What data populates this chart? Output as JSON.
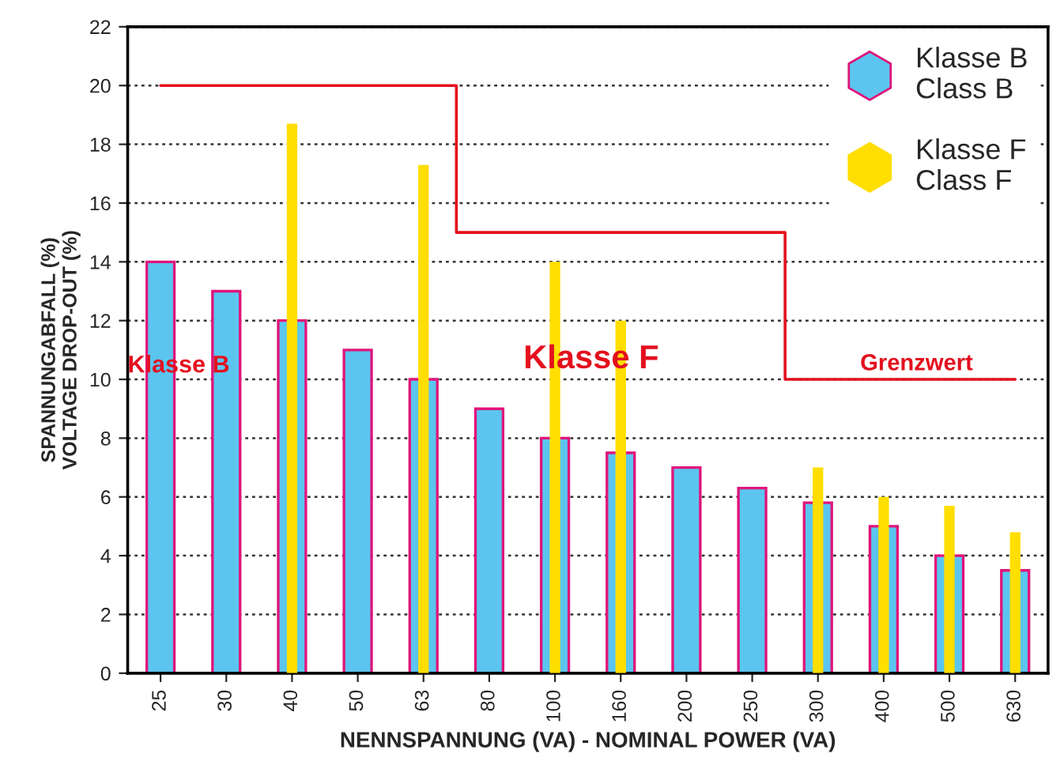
{
  "chart_data": {
    "type": "bar",
    "categories": [
      "25",
      "30",
      "40",
      "50",
      "63",
      "80",
      "100",
      "160",
      "200",
      "250",
      "300",
      "400",
      "500",
      "630"
    ],
    "xlabel": "NENNSPANNUNG (VA) - NOMINAL POWER (VA)",
    "ylabel": "SPANNUNGABFALL (%)\nVOLTAGE DROP-OUT (%)",
    "series": [
      {
        "name": "Klasse B\nClass B",
        "color": "#5bc5f0",
        "values": [
          14,
          13,
          12,
          11,
          10,
          9,
          8,
          7.5,
          7,
          6.3,
          5.8,
          5,
          4,
          3.5
        ]
      },
      {
        "name": "Klasse F\nClass F",
        "color": "#ffde00",
        "values": [
          null,
          null,
          18.7,
          null,
          17.3,
          null,
          14,
          12,
          null,
          null,
          7,
          6,
          5.7,
          4.8
        ]
      },
      {
        "name": "Grenzwert",
        "type": "step",
        "color": "#e3101e",
        "values": [
          20,
          20,
          20,
          20,
          20,
          15,
          15,
          15,
          15,
          15,
          10,
          10,
          10,
          10
        ]
      }
    ],
    "annotations": [
      "Klasse B",
      "Klasse F"
    ],
    "ylim": [
      0,
      22
    ],
    "yticks": [
      0,
      2,
      4,
      6,
      8,
      10,
      12,
      14,
      16,
      18,
      20,
      22
    ],
    "grid": "y",
    "legend": "top right"
  }
}
